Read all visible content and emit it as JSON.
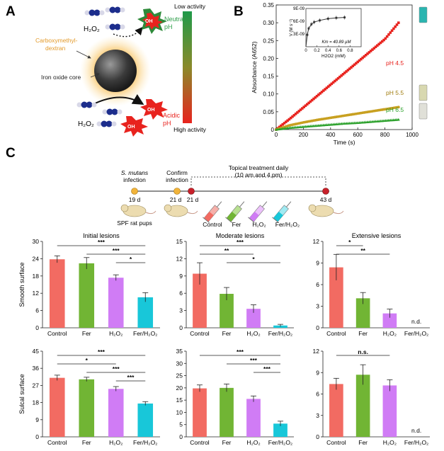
{
  "panel_letters": {
    "a": "A",
    "b": "B",
    "c": "C"
  },
  "panel_a": {
    "h2o2_top": "H₂O₂",
    "h2o2_bottom": "H₂O₂",
    "oh_label": "OH",
    "shell_label_line1": "Carboxymethyl-",
    "shell_label_line2": "dextran",
    "core_label": "Iron oxide core",
    "neutral_line1": "Neutral",
    "neutral_line2": "pH",
    "acidic_line1": "Acidic",
    "acidic_line2": "pH",
    "low_activity": "Low activity",
    "high_activity": "High activity",
    "colors": {
      "green": "#2e9e4a",
      "red": "#e8231e",
      "shell": "#e39a2a"
    }
  },
  "panel_c_timeline": {
    "infection_line1": "S. mutans",
    "infection_line2": "infection",
    "confirm_line1": "Confirm",
    "confirm_line2": "infection",
    "treatment_line1": "Topical treatment daily",
    "treatment_line2": "(10 am and 4 pm)",
    "day_19": "19 d",
    "day_21a": "21 d",
    "day_21b": "21 d",
    "day_43": "43 d",
    "rat_label": "SPF rat pups",
    "syringe_labels": [
      "Control",
      "Fer",
      "H₂O₂",
      "Fer/H₂O₂"
    ]
  },
  "chart_data": [
    {
      "id": "B",
      "type": "scatter",
      "title": "",
      "xlabel": "Time (s)",
      "ylabel": "Absorbance (A652)",
      "xlim": [
        0,
        1000
      ],
      "ylim": [
        0,
        0.35
      ],
      "xticks": [
        0,
        200,
        400,
        600,
        800,
        1000
      ],
      "yticks": [
        0,
        0.05,
        0.1,
        0.15,
        0.2,
        0.25,
        0.3,
        0.35
      ],
      "series": [
        {
          "name": "pH 4.5",
          "color": "#e8231e",
          "marker": "square",
          "x": [
            0,
            100,
            200,
            300,
            400,
            500,
            600,
            700,
            800,
            900
          ],
          "y": [
            0.0,
            0.03,
            0.062,
            0.094,
            0.126,
            0.158,
            0.19,
            0.222,
            0.254,
            0.3
          ]
        },
        {
          "name": "pH 5.5",
          "color": "#c8a020",
          "marker": "circle",
          "x": [
            0,
            100,
            200,
            300,
            400,
            500,
            600,
            700,
            800,
            900
          ],
          "y": [
            0.0,
            0.012,
            0.02,
            0.027,
            0.033,
            0.039,
            0.045,
            0.051,
            0.057,
            0.063
          ]
        },
        {
          "name": "pH 6.5",
          "color": "#2aa02a",
          "marker": "triangle",
          "x": [
            0,
            100,
            200,
            300,
            400,
            500,
            600,
            700,
            800,
            900
          ],
          "y": [
            0.0,
            0.005,
            0.008,
            0.011,
            0.014,
            0.017,
            0.019,
            0.022,
            0.025,
            0.028
          ]
        }
      ]
    },
    {
      "id": "B-inset",
      "type": "line",
      "xlabel": "H2O2 (mM)",
      "ylabel": "V (M s⁻¹)",
      "annotation": "Km = 40.89 µM",
      "xlim": [
        0,
        1.0
      ],
      "ylim": [
        0,
        9e-09
      ],
      "xticks": [
        0,
        0.2,
        0.4,
        0.6,
        0.8
      ],
      "ytick_labels": [
        "3E-09",
        "6E-09",
        "9E-09"
      ],
      "x": [
        0.0,
        0.025,
        0.05,
        0.1,
        0.15,
        0.25,
        0.4,
        0.55,
        0.7
      ],
      "y": [
        0.0,
        2.8e-09,
        4.3e-09,
        5.3e-09,
        5.8e-09,
        6.2e-09,
        6.6e-09,
        6.8e-09,
        6.9e-09
      ]
    },
    {
      "id": "C-initial-smooth",
      "type": "bar",
      "title": "Initial lesions",
      "ylabel": "Smooth surface",
      "categories": [
        "Control",
        "Fer",
        "H₂O₂",
        "Fer/H₂O₂"
      ],
      "values": [
        23.8,
        22.4,
        17.4,
        10.6
      ],
      "errors": [
        1.2,
        2.0,
        1.0,
        1.6
      ],
      "ylim": [
        0,
        30
      ],
      "yticks": [
        0,
        6,
        12,
        18,
        24,
        30
      ],
      "significance": [
        {
          "from": 0,
          "to": 3,
          "label": "***"
        },
        {
          "from": 1,
          "to": 3,
          "label": "***"
        },
        {
          "from": 2,
          "to": 3,
          "label": "*"
        }
      ]
    },
    {
      "id": "C-moderate-smooth",
      "type": "bar",
      "title": "Moderate lesions",
      "ylabel": "",
      "categories": [
        "Control",
        "Fer",
        "H₂O₂",
        "Fer/H₂O₂"
      ],
      "values": [
        9.4,
        5.9,
        3.3,
        0.4
      ],
      "errors": [
        1.9,
        1.1,
        0.7,
        0.2
      ],
      "ylim": [
        0,
        15
      ],
      "yticks": [
        0,
        3,
        6,
        9,
        12,
        15
      ],
      "significance": [
        {
          "from": 0,
          "to": 3,
          "label": "***"
        },
        {
          "from": 0,
          "to": 2,
          "label": "**"
        },
        {
          "from": 1,
          "to": 3,
          "label": "*"
        }
      ]
    },
    {
      "id": "C-extensive-smooth",
      "type": "bar",
      "title": "Extensive lesions",
      "ylabel": "",
      "categories": [
        "Control",
        "Fer",
        "H₂O₂",
        "Fer/H₂O₂"
      ],
      "values": [
        8.4,
        4.1,
        2.0,
        null
      ],
      "errors": [
        1.8,
        0.8,
        0.6,
        null
      ],
      "ylim": [
        0,
        12
      ],
      "yticks": [
        0,
        3,
        6,
        9,
        12
      ],
      "not_detected_label": "n.d.",
      "significance": [
        {
          "from": 0,
          "to": 1,
          "label": "*"
        },
        {
          "from": 0,
          "to": 2,
          "label": "**"
        }
      ]
    },
    {
      "id": "C-initial-sulcal",
      "type": "bar",
      "title": "",
      "ylabel": "Sulcal surface",
      "categories": [
        "Control",
        "Fer",
        "H₂O₂",
        "Fer/H₂O₂"
      ],
      "values": [
        31.0,
        30.2,
        25.2,
        17.5
      ],
      "errors": [
        1.4,
        1.1,
        1.2,
        1.0
      ],
      "ylim": [
        0,
        45
      ],
      "yticks": [
        0,
        9,
        18,
        27,
        36,
        45
      ],
      "significance": [
        {
          "from": 0,
          "to": 3,
          "label": "***"
        },
        {
          "from": 0,
          "to": 2,
          "label": "*"
        },
        {
          "from": 1,
          "to": 3,
          "label": "***"
        },
        {
          "from": 2,
          "to": 3,
          "label": "***"
        }
      ]
    },
    {
      "id": "C-moderate-sulcal",
      "type": "bar",
      "title": "",
      "ylabel": "",
      "categories": [
        "Control",
        "Fer",
        "H₂O₂",
        "Fer/H₂O₂"
      ],
      "values": [
        19.8,
        20.0,
        15.5,
        5.4
      ],
      "errors": [
        1.4,
        1.6,
        1.2,
        1.0
      ],
      "ylim": [
        0,
        35
      ],
      "yticks": [
        0,
        5,
        10,
        15,
        20,
        25,
        30,
        35
      ],
      "significance": [
        {
          "from": 0,
          "to": 3,
          "label": "***"
        },
        {
          "from": 1,
          "to": 3,
          "label": "***"
        },
        {
          "from": 2,
          "to": 3,
          "label": "***"
        }
      ]
    },
    {
      "id": "C-extensive-sulcal",
      "type": "bar",
      "title": "",
      "ylabel": "",
      "categories": [
        "Control",
        "Fer",
        "H₂O₂",
        "Fer/H₂O₂"
      ],
      "values": [
        7.4,
        8.7,
        7.2,
        null
      ],
      "errors": [
        0.8,
        1.4,
        0.8,
        null
      ],
      "ylim": [
        0,
        12
      ],
      "yticks": [
        0,
        3,
        6,
        9,
        12
      ],
      "not_detected_label": "n.d.",
      "significance": [
        {
          "from": 0,
          "to": 2,
          "label": "n.s."
        }
      ]
    }
  ],
  "bar_colors": [
    "#f26b62",
    "#71b534",
    "#d07cf5",
    "#18c7d9"
  ]
}
